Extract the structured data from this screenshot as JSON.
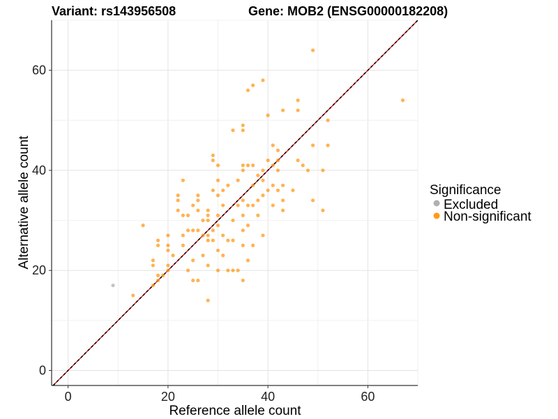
{
  "header": {
    "variant": "Variant: rs143956508",
    "gene": "Gene: MOB2 (ENSG00000182208)"
  },
  "chart_data": {
    "type": "scatter",
    "xlabel": "Reference allele count",
    "ylabel": "Alternative allele count",
    "xlim": [
      -3.3,
      70
    ],
    "ylim": [
      -3,
      70
    ],
    "xticks": [
      0,
      20,
      40,
      60
    ],
    "yticks": [
      0,
      20,
      40,
      60
    ],
    "grid": true,
    "reference_lines": [
      "y = x (black dashed)",
      "y = x (red dashed)"
    ],
    "legend": {
      "title": "Significance",
      "position": "right",
      "entries": [
        {
          "label": "Excluded",
          "color": "#b0b0b0"
        },
        {
          "label": "Non-significant",
          "color": "#ff9a1a"
        }
      ]
    },
    "series": [
      {
        "name": "Excluded",
        "color": "#b0b0b0",
        "points": [
          [
            9,
            17
          ]
        ]
      },
      {
        "name": "Non-significant",
        "color": "#ff9a1a",
        "points": [
          [
            13,
            15
          ],
          [
            15,
            29
          ],
          [
            17,
            17
          ],
          [
            17,
            21
          ],
          [
            17,
            22
          ],
          [
            18,
            18
          ],
          [
            18,
            19
          ],
          [
            18,
            25
          ],
          [
            18,
            26
          ],
          [
            19,
            19
          ],
          [
            20,
            20
          ],
          [
            20,
            21
          ],
          [
            20,
            24
          ],
          [
            20,
            25
          ],
          [
            20,
            27
          ],
          [
            21,
            23
          ],
          [
            22,
            32
          ],
          [
            22,
            34
          ],
          [
            22,
            35
          ],
          [
            23,
            25
          ],
          [
            23,
            27
          ],
          [
            23,
            31
          ],
          [
            23,
            38
          ],
          [
            24,
            20
          ],
          [
            24,
            28
          ],
          [
            24,
            31
          ],
          [
            25,
            18
          ],
          [
            25,
            22
          ],
          [
            25,
            28
          ],
          [
            25,
            33
          ],
          [
            26,
            18
          ],
          [
            26,
            28
          ],
          [
            26,
            32
          ],
          [
            26,
            34
          ],
          [
            26,
            35
          ],
          [
            27,
            23
          ],
          [
            27,
            27
          ],
          [
            27,
            30
          ],
          [
            28,
            14
          ],
          [
            28,
            21
          ],
          [
            28,
            26
          ],
          [
            28,
            27
          ],
          [
            28,
            30
          ],
          [
            28,
            31
          ],
          [
            28,
            32
          ],
          [
            29,
            26
          ],
          [
            29,
            28
          ],
          [
            29,
            36
          ],
          [
            29,
            42
          ],
          [
            29,
            43
          ],
          [
            30,
            20
          ],
          [
            30,
            24
          ],
          [
            30,
            29
          ],
          [
            30,
            31
          ],
          [
            30,
            35
          ],
          [
            30,
            38
          ],
          [
            30,
            41
          ],
          [
            31,
            23
          ],
          [
            31,
            27
          ],
          [
            31,
            33
          ],
          [
            31,
            36
          ],
          [
            32,
            20
          ],
          [
            32,
            26
          ],
          [
            32,
            37
          ],
          [
            33,
            20
          ],
          [
            33,
            26
          ],
          [
            33,
            30
          ],
          [
            33,
            48
          ],
          [
            34,
            20
          ],
          [
            34,
            33
          ],
          [
            34,
            38
          ],
          [
            35,
            18
          ],
          [
            35,
            25
          ],
          [
            35,
            28
          ],
          [
            35,
            31
          ],
          [
            35,
            34
          ],
          [
            35,
            40
          ],
          [
            35,
            41
          ],
          [
            35,
            48
          ],
          [
            35,
            49
          ],
          [
            36,
            22
          ],
          [
            36,
            29
          ],
          [
            36,
            33
          ],
          [
            36,
            41
          ],
          [
            36,
            56
          ],
          [
            37,
            25
          ],
          [
            37,
            33
          ],
          [
            37,
            37
          ],
          [
            37,
            41
          ],
          [
            37,
            57
          ],
          [
            38,
            31
          ],
          [
            38,
            34
          ],
          [
            38,
            39
          ],
          [
            39,
            27
          ],
          [
            39,
            35
          ],
          [
            39,
            38
          ],
          [
            39,
            40
          ],
          [
            39,
            58
          ],
          [
            40,
            36
          ],
          [
            40,
            42
          ],
          [
            40,
            51
          ],
          [
            41,
            33
          ],
          [
            41,
            37
          ],
          [
            41,
            41
          ],
          [
            41,
            45
          ],
          [
            42,
            36
          ],
          [
            42,
            40
          ],
          [
            42,
            42
          ],
          [
            42,
            44
          ],
          [
            43,
            32
          ],
          [
            43,
            34
          ],
          [
            43,
            37
          ],
          [
            43,
            52
          ],
          [
            45,
            36
          ],
          [
            46,
            42
          ],
          [
            46,
            52
          ],
          [
            46,
            54
          ],
          [
            47,
            41
          ],
          [
            48,
            40
          ],
          [
            49,
            34
          ],
          [
            49,
            45
          ],
          [
            49,
            64
          ],
          [
            51,
            32
          ],
          [
            51,
            40
          ],
          [
            52,
            45
          ],
          [
            52,
            50
          ],
          [
            67,
            54
          ]
        ]
      }
    ]
  }
}
